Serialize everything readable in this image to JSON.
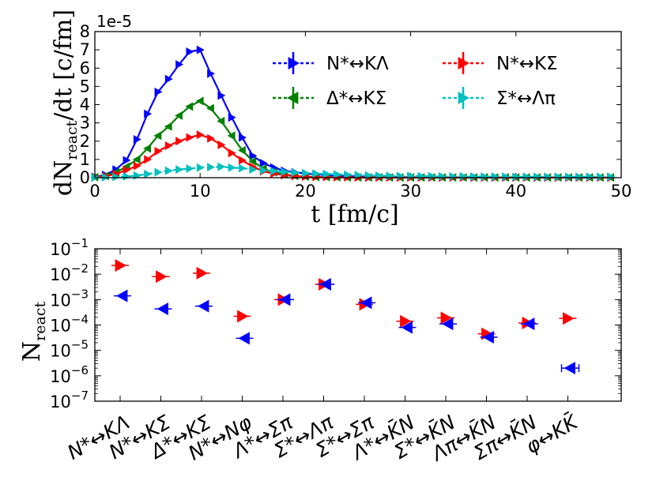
{
  "chart_data": [
    {
      "type": "line",
      "ylabel": "dN",
      "ylabel_sub": "react",
      "ylabel_tail": "/dt [c/fm]",
      "xlabel": "t [fm/c]",
      "multiplier": "1e-5",
      "xlim": [
        0,
        50
      ],
      "ylim": [
        0,
        8
      ],
      "x_ticks": [
        "0",
        "10",
        "20",
        "30",
        "40",
        "50"
      ],
      "y_ticks": [
        "0",
        "1",
        "2",
        "3",
        "4",
        "5",
        "6",
        "7",
        "8"
      ],
      "legend_position": "top-right",
      "x": [
        0,
        1,
        2,
        3,
        4,
        5,
        6,
        7,
        8,
        9,
        10,
        11,
        12,
        13,
        14,
        15,
        16,
        17,
        18,
        19,
        20,
        21,
        22,
        23,
        24,
        25,
        26,
        27,
        28,
        29,
        30,
        31,
        32,
        33,
        34,
        35,
        36,
        37,
        38,
        39,
        40,
        41,
        42,
        43,
        44,
        45,
        46,
        47,
        48,
        49
      ],
      "series": [
        {
          "name": "N*↔KΛ",
          "color": "#0000ff",
          "marker": "right",
          "values": [
            0.05,
            0.15,
            0.45,
            0.95,
            2.1,
            3.5,
            4.7,
            5.4,
            6.2,
            6.9,
            7.0,
            5.7,
            4.5,
            3.3,
            2.2,
            1.2,
            0.8,
            0.55,
            0.38,
            0.3,
            0.23,
            0.18,
            0.14,
            0.11,
            0.09,
            0.07,
            0.06,
            0.05,
            0.04,
            0.03,
            0.03,
            0.02,
            0.02,
            0.02,
            0.02,
            0.01,
            0.01,
            0.01,
            0.01,
            0.01,
            0.01,
            0.01,
            0.01,
            0.01,
            0.01,
            0.01,
            0.01,
            0.01,
            0.01,
            0.01
          ]
        },
        {
          "name": "Δ*↔KΣ",
          "color": "#008000",
          "marker": "left",
          "values": [
            0.03,
            0.1,
            0.3,
            0.6,
            1.0,
            1.6,
            2.3,
            2.8,
            3.4,
            3.9,
            4.2,
            3.8,
            3.1,
            2.3,
            1.5,
            0.9,
            0.5,
            0.3,
            0.18,
            0.1,
            0.06,
            0.04,
            0.03,
            0.02,
            0.01,
            0.01,
            0.01,
            0.01,
            0.01,
            0.01,
            0.01,
            0.01,
            0.01,
            0.01,
            0.01,
            0.01,
            0.01,
            0.01,
            0.01,
            0.01,
            0.01,
            0.01,
            0.01,
            0.01,
            0.01,
            0.01,
            0.01,
            0.01,
            0.01,
            0.01
          ]
        },
        {
          "name": "N*↔KΣ",
          "color": "#ff0000",
          "marker": "right",
          "values": [
            0.03,
            0.08,
            0.2,
            0.42,
            0.65,
            1.0,
            1.45,
            1.75,
            2.0,
            2.2,
            2.35,
            2.15,
            1.8,
            1.35,
            0.95,
            0.6,
            0.35,
            0.22,
            0.14,
            0.09,
            0.06,
            0.04,
            0.03,
            0.02,
            0.02,
            0.01,
            0.01,
            0.01,
            0.01,
            0.01,
            0.01,
            0.01,
            0.01,
            0.01,
            0.01,
            0.01,
            0.01,
            0.01,
            0.01,
            0.01,
            0.01,
            0.01,
            0.01,
            0.01,
            0.01,
            0.01,
            0.01,
            0.01,
            0.01,
            0.01
          ]
        },
        {
          "name": "Σ*↔Λπ",
          "color": "#00c0c0",
          "marker": "right",
          "values": [
            0.01,
            0.02,
            0.04,
            0.07,
            0.12,
            0.2,
            0.3,
            0.38,
            0.45,
            0.5,
            0.55,
            0.58,
            0.6,
            0.55,
            0.52,
            0.45,
            0.4,
            0.36,
            0.32,
            0.28,
            0.25,
            0.22,
            0.2,
            0.18,
            0.16,
            0.14,
            0.12,
            0.11,
            0.1,
            0.09,
            0.09,
            0.08,
            0.08,
            0.07,
            0.07,
            0.07,
            0.06,
            0.06,
            0.06,
            0.06,
            0.05,
            0.05,
            0.05,
            0.05,
            0.05,
            0.05,
            0.05,
            0.05,
            0.05,
            0.05
          ]
        }
      ]
    },
    {
      "type": "scatter",
      "y_scale": "log",
      "ylabel": "N",
      "ylabel_sub": "react",
      "ylim": [
        1e-07,
        0.1
      ],
      "y_ticks": [
        {
          "base": "10",
          "exp": "−1"
        },
        {
          "base": "10",
          "exp": "−2"
        },
        {
          "base": "10",
          "exp": "−3"
        },
        {
          "base": "10",
          "exp": "−4"
        },
        {
          "base": "10",
          "exp": "−5"
        },
        {
          "base": "10",
          "exp": "−6"
        },
        {
          "base": "10",
          "exp": "−7"
        }
      ],
      "categories": [
        "N*↔KΛ",
        "N*↔KΣ",
        "Δ*↔KΣ",
        "N*↔Nφ",
        "Λ*↔Σπ",
        "Σ*↔Λπ",
        "Σ*↔Σπ",
        "Λ*↔K̄N",
        "Σ*↔K̄N",
        "Λπ↔K̄N",
        "Σπ↔K̄N",
        "φ↔KK̄"
      ],
      "series": [
        {
          "color": "#ff0000",
          "marker": "right",
          "values": [
            0.022,
            0.008,
            0.011,
            0.00022,
            0.001,
            0.004,
            0.00065,
            0.00014,
            0.00019,
            4.5e-05,
            0.00012,
            0.00018
          ]
        },
        {
          "color": "#0000ff",
          "marker": "left",
          "values": [
            0.0014,
            0.00043,
            0.00055,
            3e-05,
            0.001,
            0.004,
            0.00075,
            8e-05,
            0.00011,
            3.3e-05,
            0.00011,
            2e-06
          ]
        }
      ]
    }
  ]
}
